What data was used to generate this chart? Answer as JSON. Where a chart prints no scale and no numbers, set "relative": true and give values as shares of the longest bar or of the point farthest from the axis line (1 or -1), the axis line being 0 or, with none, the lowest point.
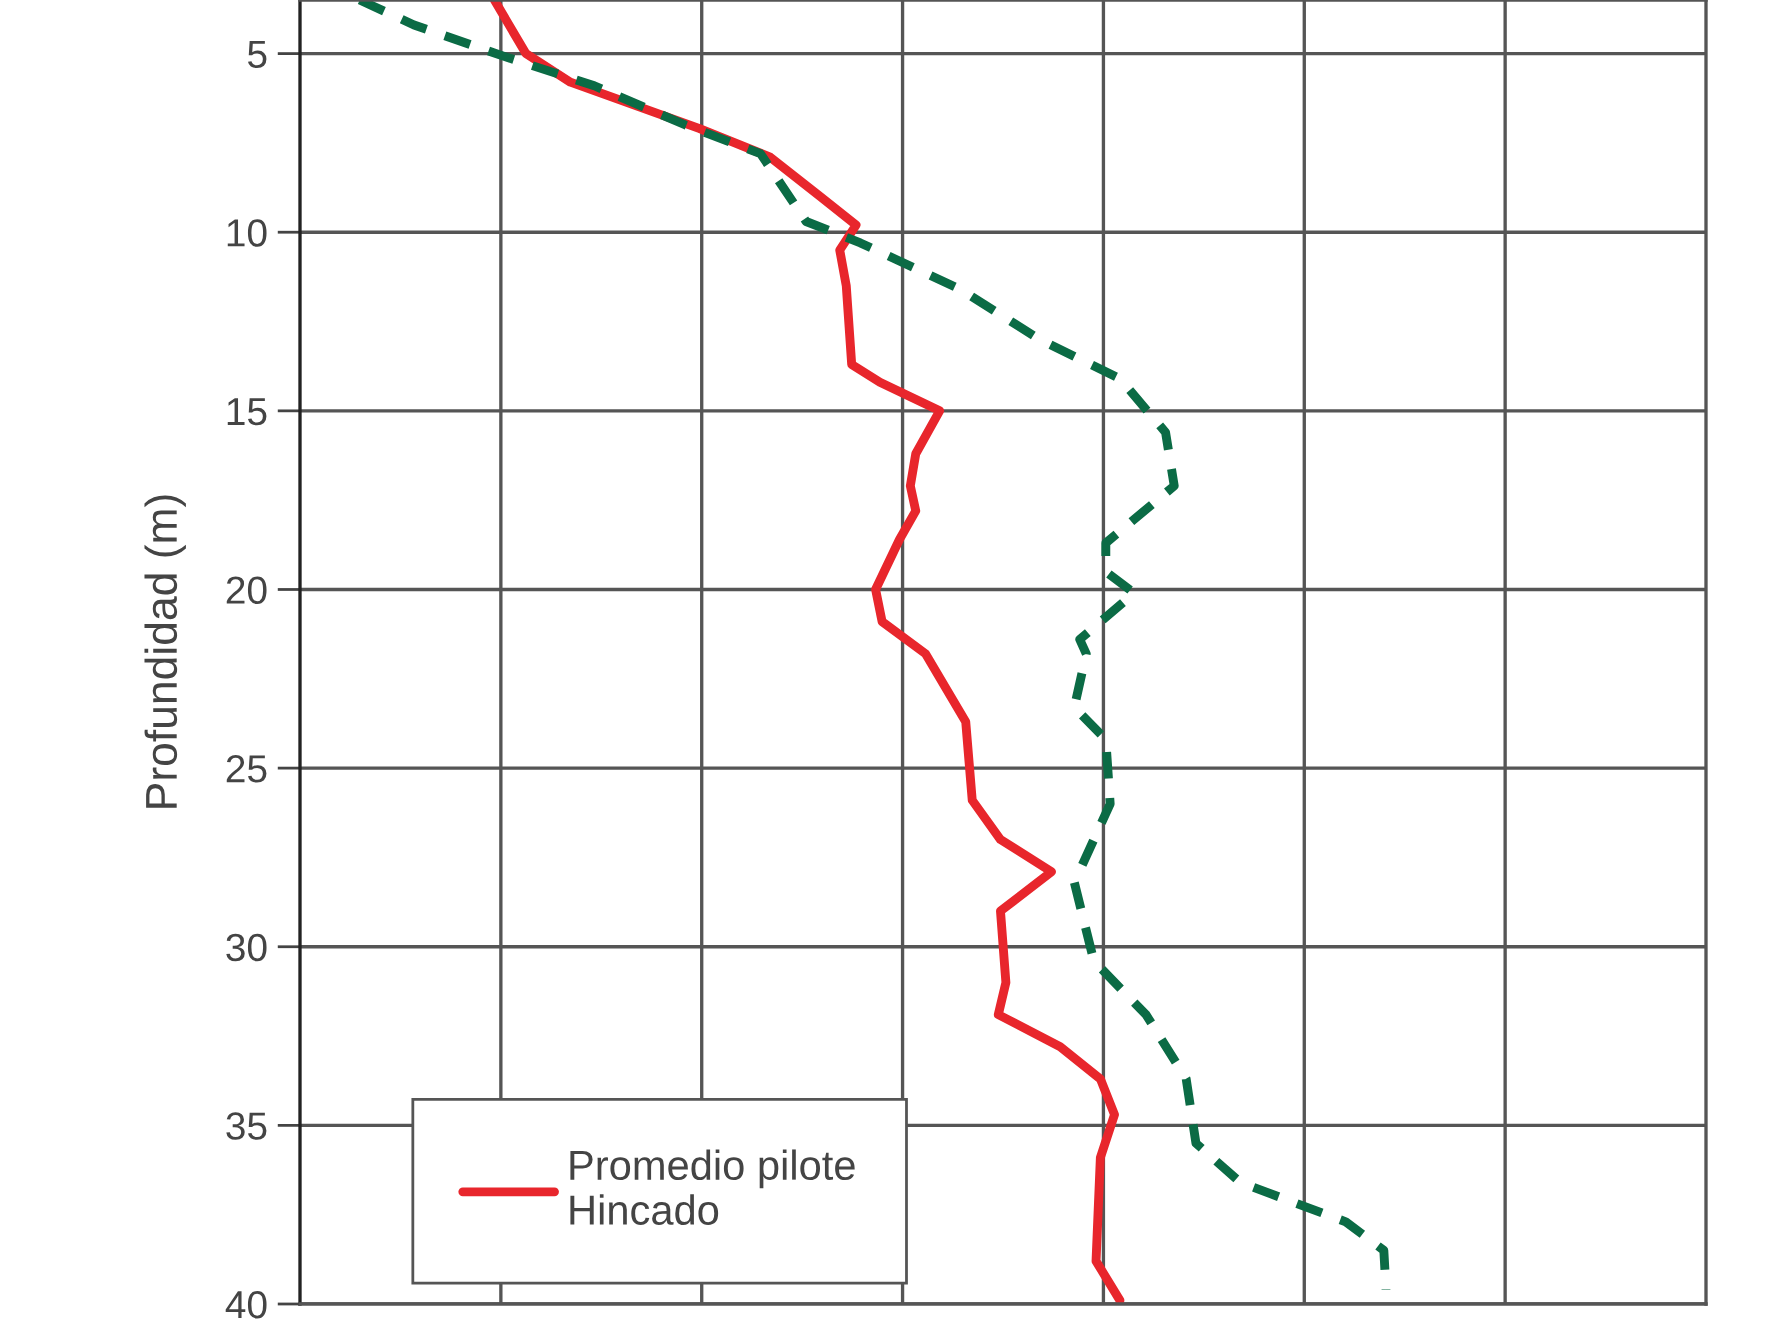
{
  "chart_data": {
    "type": "line",
    "orientation": "horizontal",
    "relative": true,
    "ylabel": "Profundidad (m)",
    "ylim": [
      40,
      3.5
    ],
    "yticks": [
      5,
      10,
      15,
      20,
      25,
      30,
      35,
      40
    ],
    "grid": true,
    "legend": "bottom left",
    "tick_labels": "y",
    "series": [
      {
        "name": "Promedio pilote Hincado",
        "color": "#e8262c",
        "line_style": "solid",
        "x": [
          3.5,
          5.0,
          5.8,
          6.5,
          7.1,
          7.9,
          9.0,
          9.8,
          10.5,
          11.5,
          13.7,
          14.2,
          15.0,
          16.2,
          17.1,
          17.8,
          18.6,
          20.0,
          20.9,
          21.8,
          23.7,
          25.9,
          27.0,
          27.9,
          29.0,
          31.0,
          31.9,
          32.8,
          33.7,
          34.7,
          35.9,
          38.8,
          39.9
        ],
        "values": [
          0.179,
          0.208,
          0.249,
          0.313,
          0.368,
          0.433,
          0.479,
          0.512,
          0.497,
          0.503,
          0.508,
          0.534,
          0.589,
          0.567,
          0.562,
          0.567,
          0.552,
          0.53,
          0.536,
          0.576,
          0.613,
          0.619,
          0.645,
          0.692,
          0.645,
          0.65,
          0.643,
          0.7,
          0.737,
          0.75,
          0.737,
          0.733,
          0.755
        ]
      },
      {
        "color": "#0b6b45",
        "line_style": "dashed",
        "x": [
          3.5,
          4.2,
          5.1,
          5.9,
          7.0,
          7.8,
          9.7,
          10.3,
          11.6,
          13.0,
          14.1,
          15.6,
          17.1,
          18.7,
          19.5,
          20.1,
          21.4,
          21.8,
          23.3,
          24.2,
          26.0,
          28.2,
          30.4,
          31.9,
          33.7,
          35.5,
          36.6,
          37.7,
          38.5,
          39.6
        ],
        "values": [
          0.055,
          0.105,
          0.19,
          0.271,
          0.355,
          0.424,
          0.466,
          0.516,
          0.608,
          0.681,
          0.755,
          0.797,
          0.805,
          0.742,
          0.742,
          0.768,
          0.718,
          0.724,
          0.713,
          0.742,
          0.746,
          0.713,
          0.731,
          0.779,
          0.816,
          0.825,
          0.866,
          0.963,
          0.998,
          1.0
        ]
      }
    ]
  }
}
